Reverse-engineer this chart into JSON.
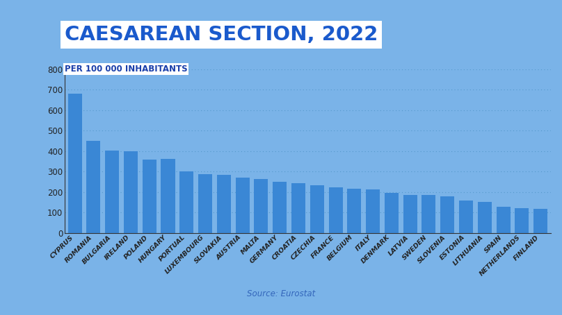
{
  "title": "CAESAREAN SECTION, 2022",
  "subtitle": "PER 100 000 INHABITANTS",
  "source": "Source: Eurostat",
  "background_color": "#7ab3e8",
  "bar_color": "#3a87d5",
  "title_color": "#1a5acc",
  "title_bg_color": "#ffffff",
  "subtitle_color": "#1a3faa",
  "subtitle_bg_color": "#ffffff",
  "source_color": "#3366bb",
  "categories": [
    "CYPRUS",
    "ROMANIA",
    "BULGARIA",
    "IRELAND",
    "POLAND",
    "HUNGARY",
    "PORTUAL",
    "LUXEMBOURG",
    "SLOVAKIA",
    "AUSTRIA",
    "MALTA",
    "GERMANY",
    "CROATIA",
    "CZECHIA",
    "FRANCE",
    "BELGIUM",
    "ITALY",
    "DENMARK",
    "LATVIA",
    "SWEDEN",
    "SLOVENIA",
    "ESTONIA",
    "LITHUANIA",
    "SPAIN",
    "NETHERLANDS",
    "FINLAND"
  ],
  "values": [
    680,
    450,
    402,
    400,
    358,
    362,
    300,
    287,
    284,
    272,
    263,
    250,
    243,
    235,
    222,
    218,
    215,
    198,
    187,
    185,
    178,
    160,
    152,
    130,
    122,
    120
  ],
  "ylim": [
    0,
    800
  ],
  "yticks": [
    0,
    100,
    200,
    300,
    400,
    500,
    600,
    700,
    800
  ],
  "grid_color": "#5599cc",
  "tick_color": "#222222",
  "tick_fontsize": 8.5,
  "xlabel_fontsize": 6.8,
  "title_fontsize": 21,
  "subtitle_fontsize": 8.5
}
